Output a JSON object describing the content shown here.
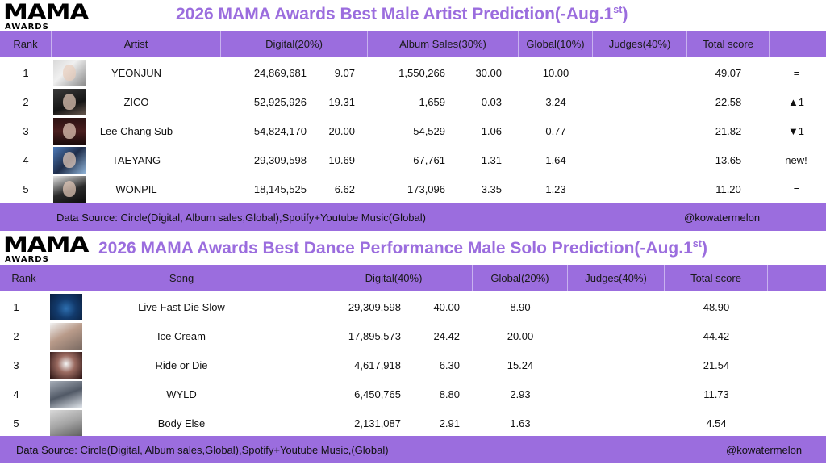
{
  "artist_section": {
    "logo": {
      "word": "MAMA",
      "sub": "AWARDS"
    },
    "title_main": "2026 MAMA Awards Best Male Artist Prediction(-Aug.1",
    "title_sup": "st",
    "title_end": ")",
    "headers": [
      "Rank",
      "Artist",
      "Digital(20%)",
      "Album Sales(30%)",
      "Global(10%)",
      "Judges(40%)",
      "Total score",
      ""
    ],
    "rows": [
      {
        "rank": "1",
        "artist": "YEONJUN",
        "digital_raw": "24,869,681",
        "digital_score": "9.07",
        "album_raw": "1,550,266",
        "album_score": "30.00",
        "global": "10.00",
        "judges": "",
        "total": "49.07",
        "change": "=",
        "change_type": "same"
      },
      {
        "rank": "2",
        "artist": "ZICO",
        "digital_raw": "52,925,926",
        "digital_score": "19.31",
        "album_raw": "1,659",
        "album_score": "0.03",
        "global": "3.24",
        "judges": "",
        "total": "22.58",
        "change": "▲1",
        "change_type": "up"
      },
      {
        "rank": "3",
        "artist": "Lee Chang Sub",
        "digital_raw": "54,824,170",
        "digital_score": "20.00",
        "album_raw": "54,529",
        "album_score": "1.06",
        "global": "0.77",
        "judges": "",
        "total": "21.82",
        "change": "▼1",
        "change_type": "down"
      },
      {
        "rank": "4",
        "artist": "TAEYANG",
        "digital_raw": "29,309,598",
        "digital_score": "10.69",
        "album_raw": "67,761",
        "album_score": "1.31",
        "global": "1.64",
        "judges": "",
        "total": "13.65",
        "change": "new!",
        "change_type": "new"
      },
      {
        "rank": "5",
        "artist": "WONPIL",
        "digital_raw": "18,145,525",
        "digital_score": "6.62",
        "album_raw": "173,096",
        "album_score": "3.35",
        "global": "1.23",
        "judges": "",
        "total": "11.20",
        "change": "=",
        "change_type": "same"
      }
    ],
    "footer_source": "Data Source: Circle(Digital, Album sales,Global),Spotify+Youtube Music(Global)",
    "footer_handle": "@kowatermelon"
  },
  "dance_section": {
    "logo": {
      "word": "MAMA",
      "sub": "AWARDS"
    },
    "title_main": "2026 MAMA Awards Best Dance Performance Male Solo Prediction(-Aug.1",
    "title_sup": "st",
    "title_end": ")",
    "headers": [
      "Rank",
      "Song",
      "Digital(40%)",
      "Global(20%)",
      "Judges(40%)",
      "Total score",
      ""
    ],
    "rows": [
      {
        "rank": "1",
        "song": "Live Fast Die Slow",
        "digital_raw": "29,309,598",
        "digital_score": "40.00",
        "global": "8.90",
        "judges": "",
        "total": "48.90"
      },
      {
        "rank": "2",
        "song": "Ice Cream",
        "digital_raw": "17,895,573",
        "digital_score": "24.42",
        "global": "20.00",
        "judges": "",
        "total": "44.42"
      },
      {
        "rank": "3",
        "song": "Ride or Die",
        "digital_raw": "4,617,918",
        "digital_score": "6.30",
        "global": "15.24",
        "judges": "",
        "total": "21.54"
      },
      {
        "rank": "4",
        "song": "WYLD",
        "digital_raw": "6,450,765",
        "digital_score": "8.80",
        "global": "2.93",
        "judges": "",
        "total": "11.73"
      },
      {
        "rank": "5",
        "song": "Body Else",
        "digital_raw": "2,131,087",
        "digital_score": "2.91",
        "global": "1.63",
        "judges": "",
        "total": "4.54"
      }
    ],
    "footer_source": "Data Source: Circle(Digital, Album sales,Global),Spotify+Youtube Music,(Global)",
    "footer_handle": "@kowatermelon"
  },
  "colors": {
    "header": "#9b6dde",
    "title": "#9b6dde",
    "up": "#e21b1b",
    "down": "#1f6fbf"
  }
}
